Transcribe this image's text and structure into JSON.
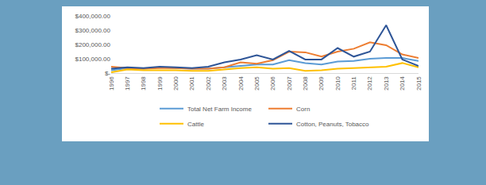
{
  "chart_data": {
    "type": "line",
    "categories": [
      "1996",
      "1997",
      "1998",
      "1999",
      "2000",
      "2001",
      "2002",
      "2003",
      "2004",
      "2005",
      "2006",
      "2007",
      "2008",
      "2009",
      "2010",
      "2011",
      "2012",
      "2013",
      "2014",
      "2015"
    ],
    "series": [
      {
        "name": "Total Net Farm Income",
        "color": "#5b9bd5",
        "values": [
          20000,
          35000,
          30000,
          40000,
          35000,
          30000,
          30000,
          40000,
          50000,
          60000,
          60000,
          90000,
          70000,
          60000,
          80000,
          85000,
          100000,
          105000,
          105000,
          85000
        ]
      },
      {
        "name": "Corn",
        "color": "#ed7d31",
        "values": [
          45000,
          35000,
          30000,
          35000,
          35000,
          30000,
          30000,
          40000,
          75000,
          65000,
          90000,
          150000,
          145000,
          115000,
          150000,
          170000,
          215000,
          195000,
          130000,
          105000
        ]
      },
      {
        "name": "Cattle",
        "color": "#ffc000",
        "values": [
          5000,
          25000,
          20000,
          20000,
          20000,
          15000,
          15000,
          25000,
          35000,
          40000,
          30000,
          35000,
          15000,
          20000,
          30000,
          35000,
          40000,
          45000,
          70000,
          40000
        ]
      },
      {
        "name": "Cotton, Peanuts, Tobacco",
        "color": "#2e5597",
        "values": [
          30000,
          40000,
          35000,
          45000,
          40000,
          35000,
          45000,
          75000,
          95000,
          125000,
          95000,
          155000,
          95000,
          95000,
          175000,
          115000,
          150000,
          335000,
          95000,
          50000
        ]
      }
    ],
    "ylim": [
      0,
      400000
    ],
    "yticks": [
      {
        "value": 0,
        "label": "$-"
      },
      {
        "value": 100000,
        "label": "$100,000.00"
      },
      {
        "value": 200000,
        "label": "$200,000.00"
      },
      {
        "value": 300000,
        "label": "$300,000.00"
      },
      {
        "value": 400000,
        "label": "$400,000.00"
      }
    ],
    "grid": false,
    "legend": "bottom"
  }
}
